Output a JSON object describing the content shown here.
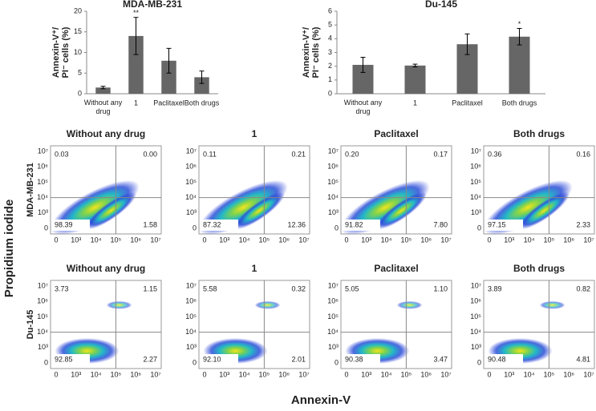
{
  "chart_data": [
    {
      "type": "bar",
      "title": "MDA-MB-231",
      "y_label": [
        "Annexin-V⁺/",
        "PI⁻ cells (%)"
      ],
      "categories": [
        "Without any drug",
        "1",
        "Paclitaxel",
        "Both drugs"
      ],
      "values": [
        1.5,
        14,
        8,
        4
      ],
      "errors": [
        0.3,
        4.5,
        3,
        1.5
      ],
      "annotations": [
        null,
        "**",
        null,
        null
      ],
      "color": "#666666",
      "ylim": [
        0,
        20
      ],
      "yticks": [
        0,
        5,
        10,
        15,
        20
      ]
    },
    {
      "type": "bar",
      "title": "Du-145",
      "y_label": [
        "Annexin-V⁺/",
        "PI⁻ cells (%)"
      ],
      "categories": [
        "Without any drug",
        "1",
        "Paclitaxel",
        "Both drugs"
      ],
      "values": [
        2.1,
        2.05,
        3.6,
        4.15
      ],
      "errors": [
        0.55,
        0.1,
        0.75,
        0.6
      ],
      "annotations": [
        null,
        null,
        null,
        "*"
      ],
      "color": "#666666",
      "ylim": [
        0,
        6
      ],
      "yticks": [
        0,
        1,
        2,
        3,
        4,
        5,
        6
      ]
    }
  ],
  "flow": {
    "x_label": "Annexin-V",
    "y_label": "Propidium iodide",
    "ticks": [
      "0",
      "10³",
      "10⁴",
      "10⁵",
      "10⁶",
      "10⁷"
    ],
    "rows": [
      {
        "label": "MDA-MB-231",
        "panels": [
          {
            "title": "Without any drug",
            "quadrants": [
              "0.03",
              "0.00",
              "98.39",
              "1.58"
            ]
          },
          {
            "title": "1",
            "quadrants": [
              "0.11",
              "0.21",
              "87.32",
              "12.36"
            ]
          },
          {
            "title": "Paclitaxel",
            "quadrants": [
              "0.20",
              "0.17",
              "91.82",
              "7.80"
            ]
          },
          {
            "title": "Both drugs",
            "quadrants": [
              "0.36",
              "0.16",
              "97.15",
              "2.33"
            ]
          }
        ]
      },
      {
        "label": "Du-145",
        "panels": [
          {
            "title": "Without any drug",
            "quadrants": [
              "3.73",
              "1.15",
              "92.85",
              "2.27"
            ]
          },
          {
            "title": "1",
            "quadrants": [
              "5.58",
              "0.32",
              "92.10",
              "2.01"
            ]
          },
          {
            "title": "Paclitaxel",
            "quadrants": [
              "5.05",
              "1.10",
              "90.38",
              "3.47"
            ]
          },
          {
            "title": "Both drugs",
            "quadrants": [
              "3.89",
              "0.82",
              "90.48",
              "4.81"
            ]
          }
        ]
      }
    ]
  }
}
